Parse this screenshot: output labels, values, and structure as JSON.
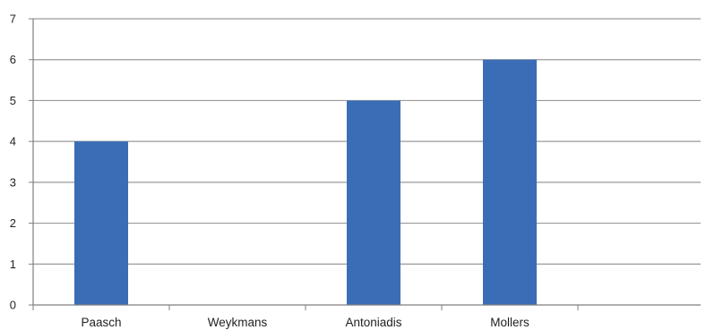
{
  "chart_data": {
    "type": "bar",
    "categories": [
      "Paasch",
      "Weykmans",
      "Antoniadis",
      "Mollers",
      ""
    ],
    "values": [
      4,
      0,
      5,
      6,
      0
    ],
    "title": "",
    "xlabel": "",
    "ylabel": "",
    "ylim": [
      0,
      7
    ],
    "yticks": [
      0,
      1,
      2,
      3,
      4,
      5,
      6,
      7
    ],
    "grid": true,
    "legend": "none",
    "bar_color": "#3a6db5",
    "gridline_color": "#9a9a9a",
    "axis_color": "#7f7f7f"
  }
}
